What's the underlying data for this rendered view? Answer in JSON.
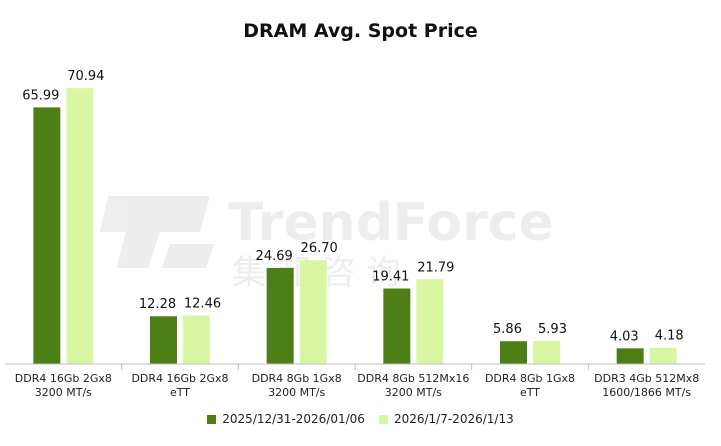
{
  "chart_data": {
    "type": "bar",
    "title": "DRAM Avg. Spot Price",
    "categories": [
      [
        "DDR4 16Gb 2Gx8",
        "3200 MT/s"
      ],
      [
        "DDR4 16Gb 2Gx8",
        "eTT"
      ],
      [
        "DDR4 8Gb 1Gx8",
        "3200 MT/s"
      ],
      [
        "DDR4 8Gb 512Mx16",
        "3200 MT/s"
      ],
      [
        "DDR4 8Gb 1Gx8",
        "eTT"
      ],
      [
        "DDR3 4Gb 512Mx8",
        "1600/1866 MT/s"
      ]
    ],
    "series": [
      {
        "name": "2025/12/31-2026/01/06",
        "values": [
          65.99,
          12.28,
          24.69,
          19.41,
          5.86,
          4.03
        ],
        "labels": [
          "65.99",
          "12.28",
          "24.69",
          "19.41",
          "5.86",
          "4.03"
        ],
        "color": "#4e7f16"
      },
      {
        "name": "2026/1/7-2026/1/13",
        "values": [
          70.94,
          12.46,
          26.7,
          21.79,
          5.93,
          4.18
        ],
        "labels": [
          "70.94",
          "12.46",
          "26.70",
          "21.79",
          "5.93",
          "4.18"
        ],
        "color": "#d9f7a3"
      }
    ],
    "ylim": [
      0,
      72
    ],
    "grid": false,
    "legend_position": "bottom"
  },
  "watermark": {
    "text": "TrendForce",
    "subtext": "集 邦 咨 询"
  }
}
